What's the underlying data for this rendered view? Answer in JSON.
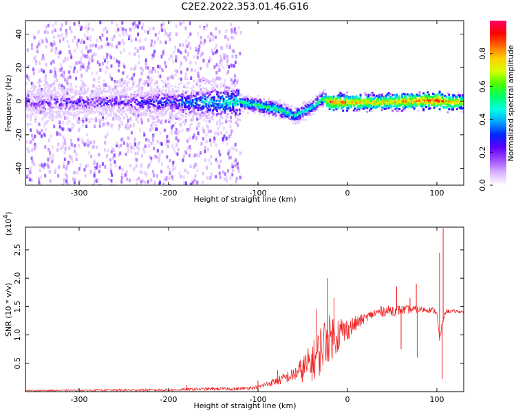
{
  "title": "C2E2.2022.353.01.46.G16",
  "chart_data": [
    {
      "type": "heatmap",
      "xlabel": "Height of straight line (km)",
      "ylabel": "Frequency (Hz)",
      "xlim": [
        -360,
        130
      ],
      "ylim": [
        -50,
        48
      ],
      "x_ticks": [
        -300,
        -200,
        -100,
        0,
        100
      ],
      "y_ticks": [
        -40,
        -20,
        0,
        20,
        40
      ],
      "colorbar": {
        "label": "Normalized spectral amplitude",
        "range": [
          0,
          1
        ],
        "ticks": [
          0.0,
          0.2,
          0.4,
          0.6,
          0.8
        ],
        "tick_labels": [
          "0.0",
          "0.2",
          "0.4",
          "0.6",
          "0.8"
        ],
        "colormap": [
          "#ffffff",
          "#d9b3ff",
          "#a04cff",
          "#5a00ff",
          "#0026ff",
          "#00a6ff",
          "#00ffe0",
          "#00ff6a",
          "#4cff00",
          "#d4ff00",
          "#ffd000",
          "#ff6a00",
          "#ff0000",
          "#ff0066"
        ]
      },
      "ridge": {
        "x": [
          -360,
          -300,
          -250,
          -200,
          -150,
          -120,
          -100,
          -80,
          -60,
          -40,
          -30,
          -20,
          0,
          30,
          60,
          90,
          100,
          110,
          130
        ],
        "center_hz": [
          0,
          0,
          0,
          0,
          0,
          0,
          -2,
          -4,
          -8,
          -3,
          2,
          0,
          0,
          0,
          0.5,
          1,
          1,
          0,
          0
        ],
        "amplitude": [
          0.2,
          0.22,
          0.25,
          0.3,
          0.45,
          0.5,
          0.55,
          0.55,
          0.5,
          0.5,
          0.55,
          0.85,
          0.8,
          0.75,
          0.8,
          0.85,
          0.9,
          0.8,
          0.75
        ]
      },
      "scatter_extent_x": [
        -360,
        -120
      ]
    },
    {
      "type": "line",
      "xlabel": "Height of straight line (km)",
      "ylabel": "SNR (10 * v/v)",
      "y_multiplier_label": "(x10",
      "y_multiplier_exponent": "4",
      "y_multiplier_close": ")",
      "xlim": [
        -360,
        130
      ],
      "ylim": [
        0,
        2.9
      ],
      "x_ticks": [
        -300,
        -200,
        -100,
        0,
        100
      ],
      "y_ticks": [
        0.5,
        1.0,
        1.5,
        2.0,
        2.5
      ],
      "color": "#ee2222",
      "baseline_x": [
        -360,
        -200,
        -150,
        -120,
        -100,
        -80,
        -60,
        -45,
        -35,
        -25,
        -15,
        -5,
        0,
        10,
        20,
        30,
        40,
        60,
        80,
        95,
        100,
        103,
        106,
        110,
        130
      ],
      "baseline_y": [
        0.02,
        0.03,
        0.05,
        0.05,
        0.08,
        0.18,
        0.3,
        0.45,
        0.6,
        0.9,
        1.0,
        1.05,
        1.1,
        1.2,
        1.3,
        1.38,
        1.42,
        1.44,
        1.45,
        1.44,
        1.4,
        0.9,
        1.2,
        1.42,
        1.41
      ],
      "noise_amp_x": [
        -360,
        -100,
        -60,
        -45,
        -30,
        -15,
        0,
        20,
        50,
        90,
        100,
        130
      ],
      "noise_amp_y": [
        0.01,
        0.03,
        0.12,
        0.3,
        0.45,
        0.4,
        0.2,
        0.08,
        0.1,
        0.05,
        0.05,
        0.02
      ],
      "spikes": [
        {
          "x": -180,
          "y": 0.12
        },
        {
          "x": -100,
          "y": 0.2
        },
        {
          "x": -78,
          "y": 0.38
        },
        {
          "x": -35,
          "y": 1.45
        },
        {
          "x": -22,
          "y": 2.0
        },
        {
          "x": -15,
          "y": 1.65
        },
        {
          "x": -7,
          "y": 1.28
        },
        {
          "x": 15,
          "y": 1.25
        },
        {
          "x": 55,
          "y": 1.85
        },
        {
          "x": 60,
          "y": 0.75
        },
        {
          "x": 70,
          "y": 1.65
        },
        {
          "x": 77,
          "y": 1.9
        },
        {
          "x": 78,
          "y": 0.6
        },
        {
          "x": 103,
          "y": 2.45
        },
        {
          "x": 106,
          "y": 0.22
        },
        {
          "x": 107,
          "y": 2.88
        }
      ]
    }
  ]
}
